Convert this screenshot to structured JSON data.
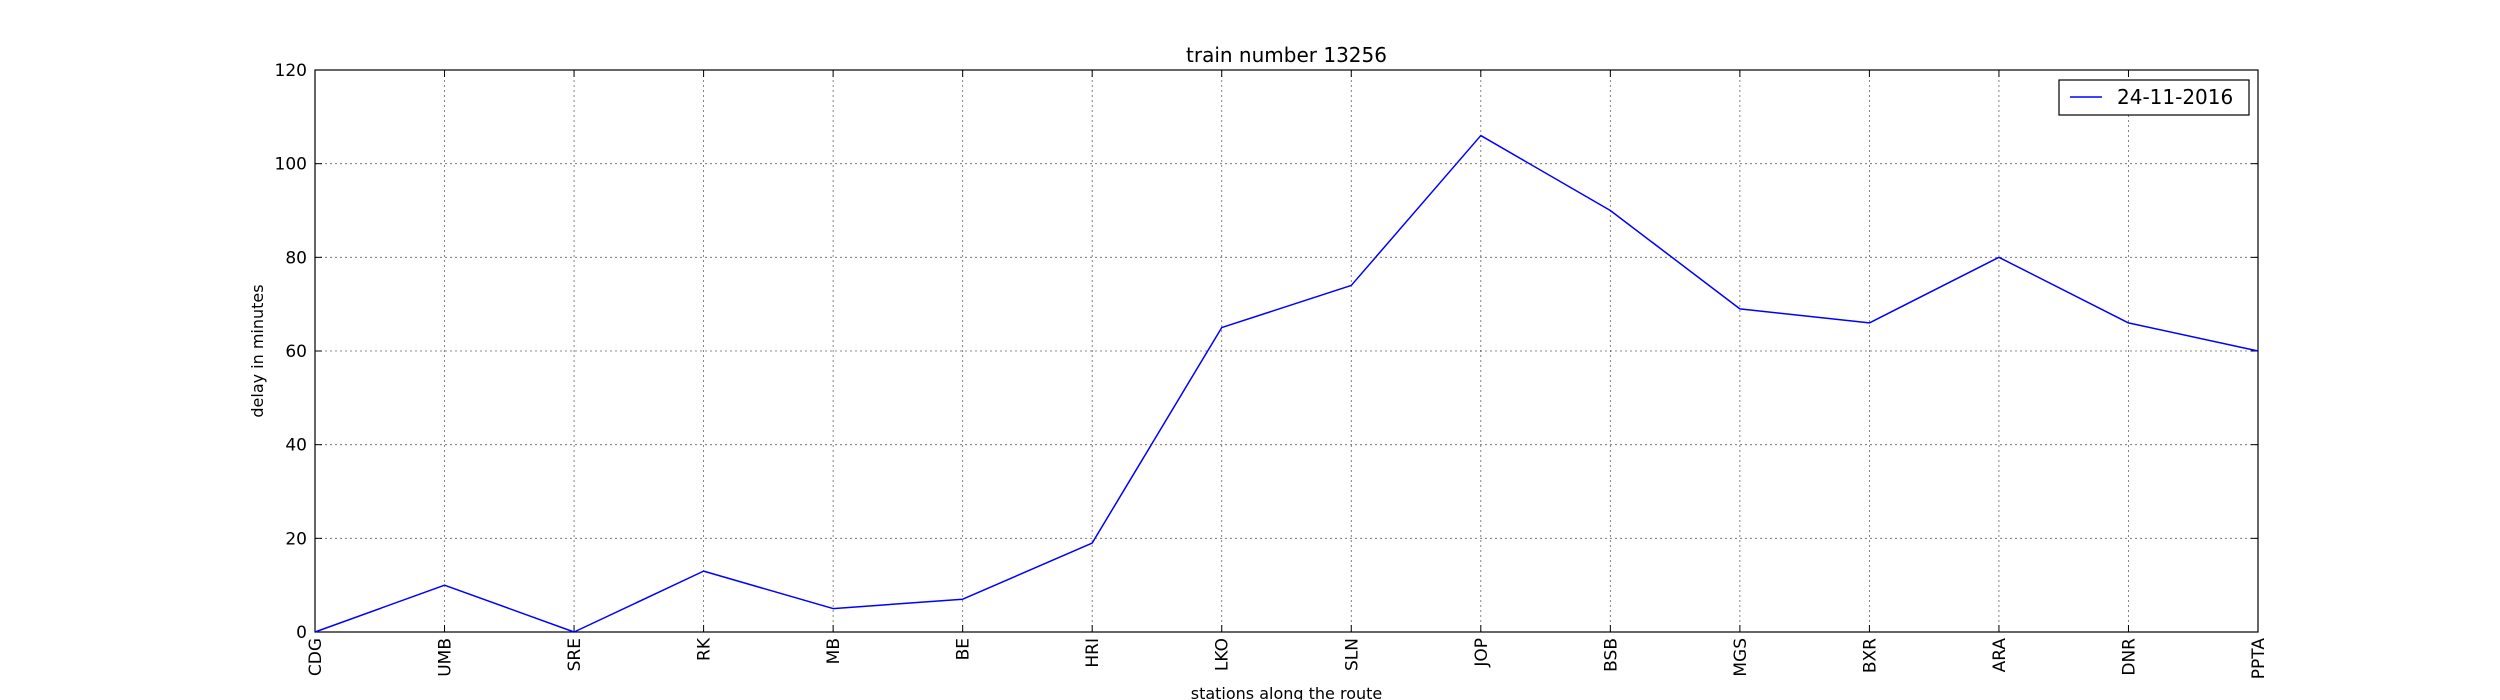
{
  "chart_data": {
    "type": "line",
    "title": "train number 13256",
    "xlabel": "stations along the route",
    "ylabel": "delay in minutes",
    "categories": [
      "CDG",
      "UMB",
      "SRE",
      "RK",
      "MB",
      "BE",
      "HRI",
      "LKO",
      "SLN",
      "JOP",
      "BSB",
      "MGS",
      "BXR",
      "ARA",
      "DNR",
      "PPTA"
    ],
    "series": [
      {
        "name": "24-11-2016",
        "values": [
          0,
          10,
          0,
          13,
          5,
          7,
          19,
          65,
          74,
          106,
          90,
          69,
          66,
          80,
          66,
          60
        ]
      }
    ],
    "ylim": [
      0,
      120
    ],
    "yticks": [
      "0",
      "20",
      "40",
      "60",
      "80",
      "100",
      "120"
    ],
    "grid": true,
    "legend_position": "top-right",
    "line_color": "#0000ff"
  }
}
